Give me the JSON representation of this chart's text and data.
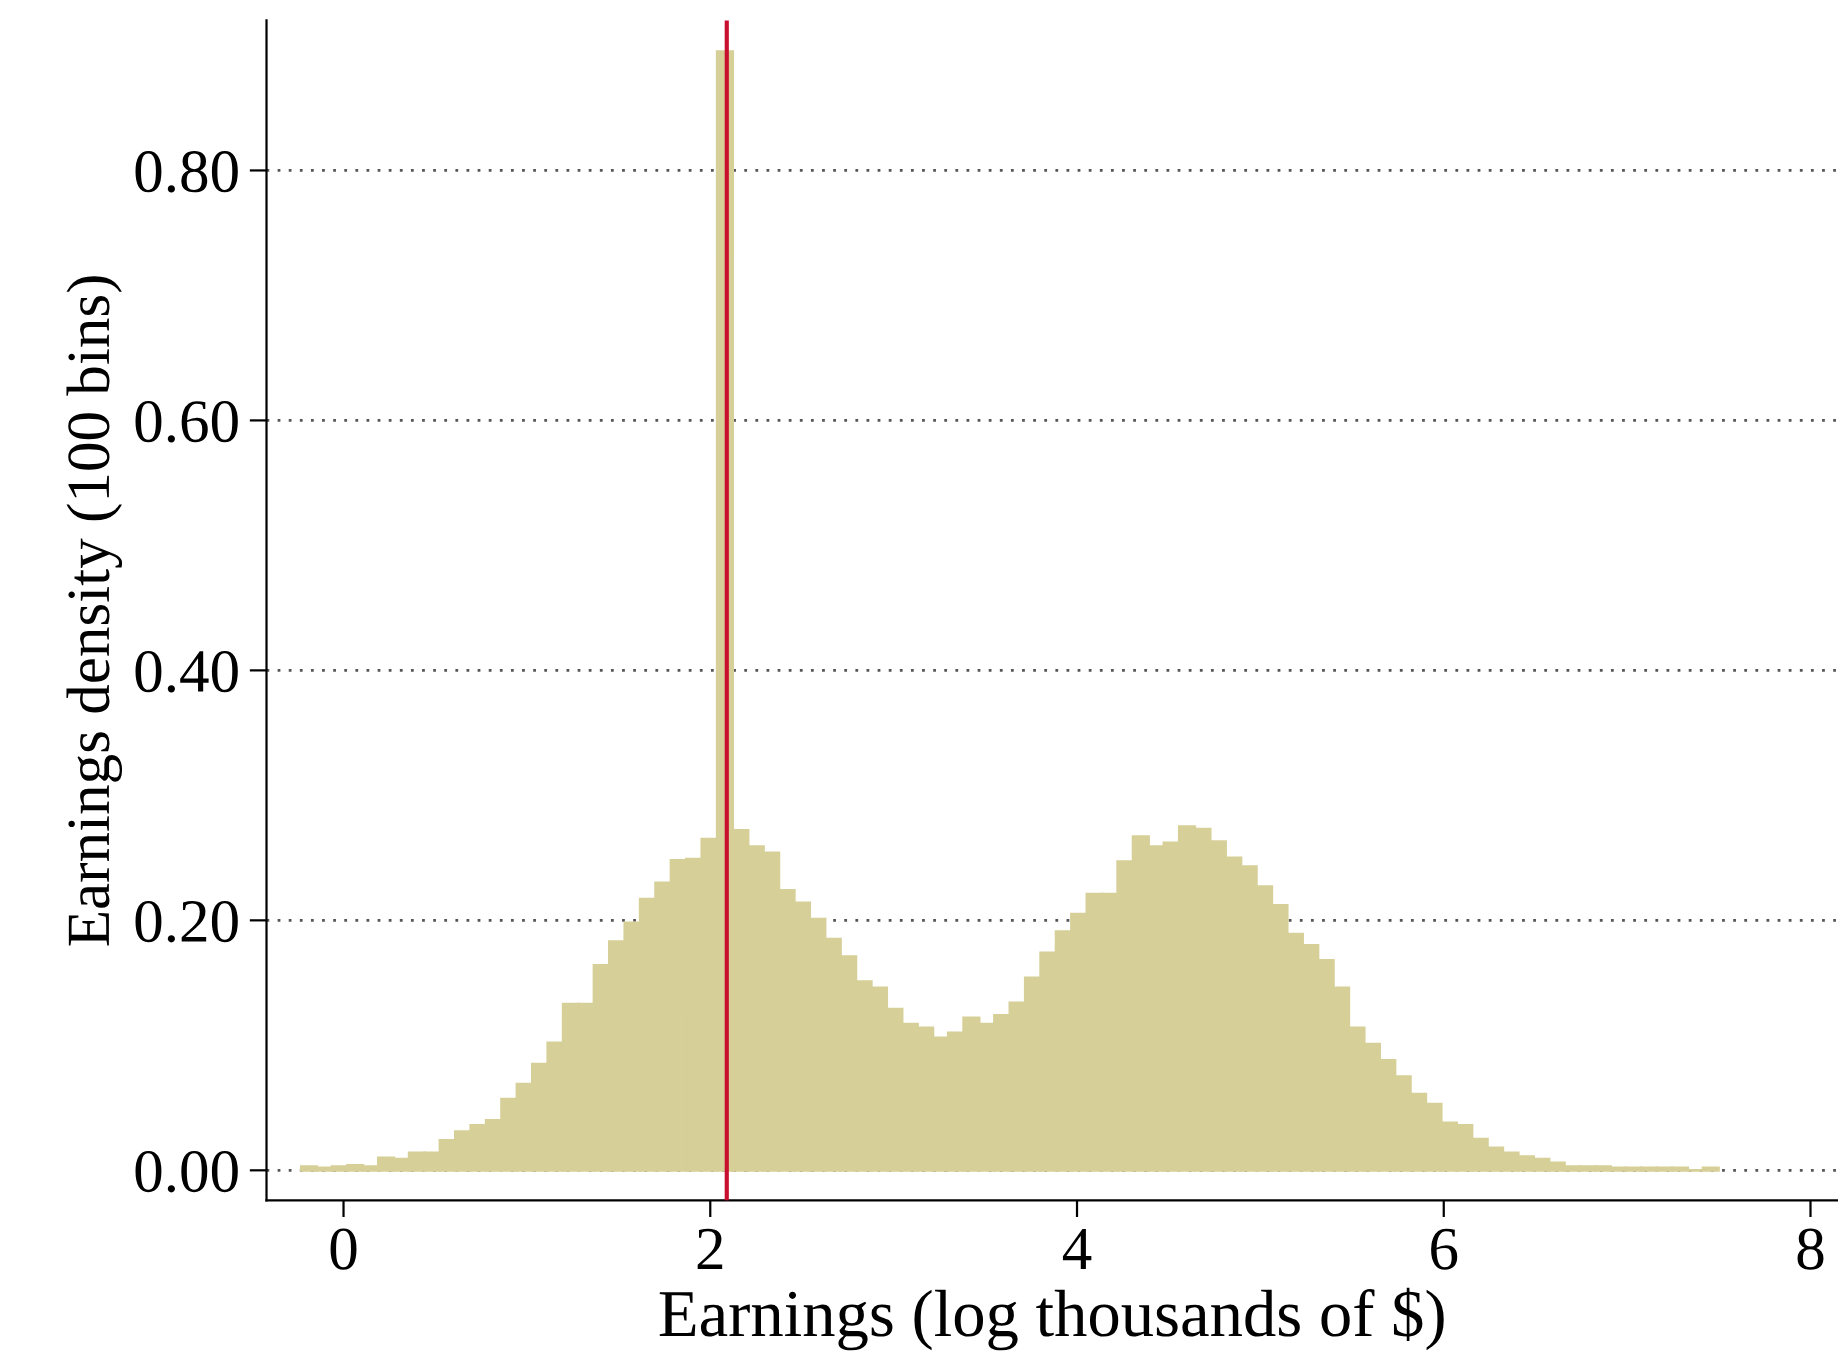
{
  "chart_data": {
    "type": "histogram",
    "xlabel": "Earnings (log thousands of $)",
    "ylabel": "Earnings density (100 bins)",
    "bins": [
      -0.23,
      -0.146,
      -0.062,
      0.022,
      0.106,
      0.19,
      0.274,
      0.358,
      0.442,
      0.526,
      0.61,
      0.694,
      0.778,
      0.862,
      0.946,
      1.03,
      1.114,
      1.198,
      1.282,
      1.366,
      1.45,
      1.534,
      1.618,
      1.702,
      1.786,
      1.87,
      1.954,
      2.038,
      2.122,
      2.206,
      2.29,
      2.374,
      2.458,
      2.542,
      2.626,
      2.71,
      2.794,
      2.878,
      2.962,
      3.046,
      3.13,
      3.214,
      3.298,
      3.382,
      3.466,
      3.55,
      3.634,
      3.718,
      3.802,
      3.886,
      3.97,
      4.054,
      4.138,
      4.222,
      4.306,
      4.39,
      4.474,
      4.558,
      4.642,
      4.726,
      4.81,
      4.894,
      4.978,
      5.062,
      5.146,
      5.23,
      5.314,
      5.398,
      5.482,
      5.566,
      5.65,
      5.734,
      5.818,
      5.902,
      5.986,
      6.07,
      6.154,
      6.238,
      6.322,
      6.406,
      6.49,
      6.574,
      6.658,
      6.742,
      6.826,
      6.91,
      6.994,
      7.078,
      7.162,
      7.246,
      7.33,
      7.414,
      7.498
    ],
    "values": [
      0.003,
      0.002,
      0.003,
      0.004,
      0.003,
      0.01,
      0.009,
      0.014,
      0.014,
      0.024,
      0.031,
      0.036,
      0.04,
      0.057,
      0.069,
      0.085,
      0.102,
      0.133,
      0.133,
      0.164,
      0.183,
      0.198,
      0.217,
      0.23,
      0.248,
      0.249,
      0.265,
      0.895,
      0.272,
      0.259,
      0.254,
      0.224,
      0.214,
      0.201,
      0.185,
      0.171,
      0.151,
      0.146,
      0.129,
      0.117,
      0.114,
      0.106,
      0.11,
      0.122,
      0.117,
      0.124,
      0.134,
      0.154,
      0.174,
      0.191,
      0.205,
      0.221,
      0.221,
      0.247,
      0.267,
      0.259,
      0.262,
      0.275,
      0.273,
      0.263,
      0.25,
      0.243,
      0.227,
      0.212,
      0.189,
      0.18,
      0.168,
      0.146,
      0.114,
      0.101,
      0.088,
      0.075,
      0.061,
      0.053,
      0.038,
      0.036,
      0.025,
      0.018,
      0.014,
      0.011,
      0.009,
      0.006,
      0.003,
      0.003,
      0.003,
      0.002,
      0.002,
      0.002,
      0.002,
      0.002,
      0,
      0.002
    ],
    "color": "#d6cf98",
    "xlim": [
      -0.42,
      8.15
    ],
    "ylim": [
      -0.024,
      0.92
    ],
    "xticks": [
      0,
      2,
      4,
      6,
      8
    ],
    "yticks": [
      {
        "value": 0,
        "label": "0.00"
      },
      {
        "value": 0.2,
        "label": "0.20"
      },
      {
        "value": 0.4,
        "label": "0.40"
      },
      {
        "value": 0.6,
        "label": "0.60"
      },
      {
        "value": 0.8,
        "label": "0.80"
      }
    ],
    "grid": "y",
    "ref_lines": [
      {
        "axis": "x",
        "value": 2.09,
        "color": "#c8102e"
      }
    ]
  }
}
